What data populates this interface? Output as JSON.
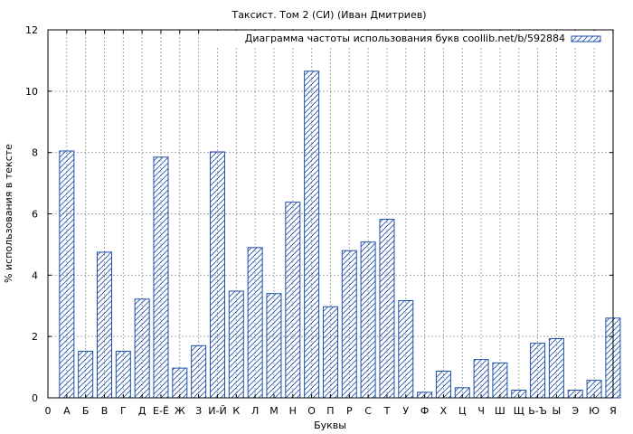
{
  "chart_data": {
    "type": "bar",
    "title": "Таксист. Том 2 (СИ) (Иван Дмитриев)",
    "xlabel": "Буквы",
    "ylabel": "% использования в тексте",
    "legend": {
      "label": "Диаграмма частоты использования букв coollib.net/b/592884",
      "placement": "top-right"
    },
    "ylim": [
      0,
      12
    ],
    "yticks": [
      "0",
      "2",
      "4",
      "6",
      "8",
      "10",
      "12"
    ],
    "xticks": [
      "0",
      "А",
      "Б",
      "В",
      "Г",
      "Д",
      "Е-Ё",
      "Ж",
      "З",
      "И-Й",
      "К",
      "Л",
      "М",
      "Н",
      "О",
      "П",
      "Р",
      "С",
      "Т",
      "У",
      "Ф",
      "Х",
      "Ц",
      "Ч",
      "Ш",
      "Щ",
      "Ь-Ъ",
      "Ы",
      "Э",
      "Ю",
      "Я"
    ],
    "categories": [
      "А",
      "Б",
      "В",
      "Г",
      "Д",
      "Е-Ё",
      "Ж",
      "З",
      "И-Й",
      "К",
      "Л",
      "М",
      "Н",
      "О",
      "П",
      "Р",
      "С",
      "Т",
      "У",
      "Ф",
      "Х",
      "Ц",
      "Ч",
      "Ш",
      "Щ",
      "Ь-Ъ",
      "Ы",
      "Э",
      "Ю",
      "Я"
    ],
    "values": [
      8.05,
      1.52,
      4.75,
      1.52,
      3.22,
      7.85,
      0.97,
      1.7,
      8.02,
      3.48,
      4.9,
      3.4,
      6.38,
      10.65,
      2.97,
      4.8,
      5.08,
      5.82,
      3.17,
      0.18,
      0.87,
      0.33,
      1.25,
      1.14,
      0.25,
      1.78,
      1.93,
      0.25,
      0.57,
      2.6
    ],
    "grid": true,
    "colors": {
      "bar_stroke": "#1f4fa8",
      "grid": "#aaaaaa"
    }
  }
}
